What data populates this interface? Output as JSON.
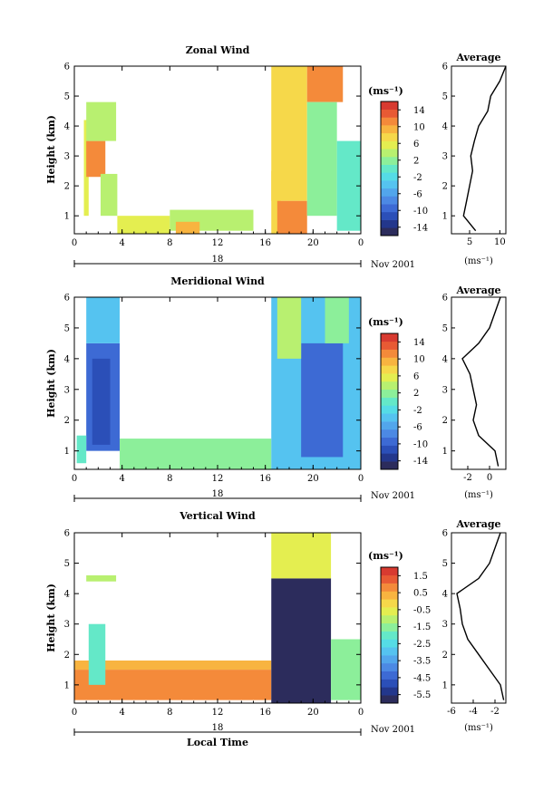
{
  "figure": {
    "x_axis_label": "Local Time",
    "date_label": "Nov 2001",
    "day_label": "18"
  },
  "chart_data": [
    {
      "type": "heatmap",
      "title": "Zonal Wind",
      "ylabel": "Height (km)",
      "x_ticks": [
        "0",
        "4",
        "8",
        "12",
        "16",
        "20",
        "0"
      ],
      "y_ticks": [
        "1",
        "2",
        "3",
        "4",
        "5",
        "6"
      ],
      "xlim_hours": [
        0,
        24
      ],
      "ylim": [
        0.4,
        6
      ],
      "colorbar": {
        "unit": "(ms⁻¹)",
        "ticks": [
          "14",
          "10",
          "6",
          "2",
          "-2",
          "-6",
          "-10",
          "-14"
        ],
        "min": -16,
        "max": 16,
        "colors": [
          "#2c2c5c",
          "#23378c",
          "#2b4fb8",
          "#3d6ad4",
          "#4c89e4",
          "#52a6ec",
          "#55c3f0",
          "#55dce6",
          "#64e8c8",
          "#8cef9a",
          "#b8f070",
          "#e4ee50",
          "#f6d84a",
          "#f8b440",
          "#f48a3a",
          "#e85a34",
          "#d83a30"
        ]
      },
      "regions": [
        {
          "t": [
            0.8,
            1.2
          ],
          "h": [
            1.0,
            4.2
          ],
          "value": 5
        },
        {
          "t": [
            1.0,
            2.6
          ],
          "h": [
            2.3,
            3.5
          ],
          "value": 12
        },
        {
          "t": [
            1.0,
            3.5
          ],
          "h": [
            3.5,
            4.8
          ],
          "value": 4
        },
        {
          "t": [
            2.2,
            3.6
          ],
          "h": [
            1.0,
            2.4
          ],
          "value": 4
        },
        {
          "t": [
            3.6,
            8.0
          ],
          "h": [
            0.4,
            1.0
          ],
          "value": 6
        },
        {
          "t": [
            8.0,
            15.0
          ],
          "h": [
            0.5,
            1.2
          ],
          "value": 3
        },
        {
          "t": [
            8.5,
            10.5
          ],
          "h": [
            0.4,
            0.8
          ],
          "value": 10
        },
        {
          "t": [
            16.5,
            17.3
          ],
          "h": [
            0.4,
            2.5
          ],
          "value": 8
        },
        {
          "t": [
            17.0,
            19.5
          ],
          "h": [
            0.4,
            1.5
          ],
          "value": 12
        },
        {
          "t": [
            16.5,
            19.5
          ],
          "h": [
            1.5,
            6.0
          ],
          "value": 7
        },
        {
          "t": [
            19.5,
            22.5
          ],
          "h": [
            4.8,
            6.0
          ],
          "value": 12
        },
        {
          "t": [
            19.5,
            22.0
          ],
          "h": [
            1.0,
            4.8
          ],
          "value": 2
        },
        {
          "t": [
            22.0,
            24.0
          ],
          "h": [
            0.5,
            3.5
          ],
          "value": 0
        }
      ],
      "profile": {
        "title": "Average",
        "xlabel": "(ms⁻¹)",
        "x_ticks": [
          "5",
          "10"
        ],
        "xlim": [
          2,
          11
        ],
        "heights": [
          0.5,
          1.0,
          1.5,
          2.0,
          2.5,
          3.0,
          3.5,
          4.0,
          4.5,
          5.0,
          5.5,
          6.0
        ],
        "values": [
          6.0,
          4.0,
          4.5,
          5.0,
          5.5,
          5.2,
          5.8,
          6.5,
          8.0,
          8.5,
          10.0,
          11.0
        ]
      }
    },
    {
      "type": "heatmap",
      "title": "Meridional Wind",
      "ylabel": "Height (km)",
      "x_ticks": [
        "0",
        "4",
        "8",
        "12",
        "16",
        "20",
        "0"
      ],
      "y_ticks": [
        "1",
        "2",
        "3",
        "4",
        "5",
        "6"
      ],
      "xlim_hours": [
        0,
        24
      ],
      "ylim": [
        0.4,
        6
      ],
      "colorbar": {
        "unit": "(ms⁻¹)",
        "ticks": [
          "14",
          "10",
          "6",
          "2",
          "-2",
          "-6",
          "-10",
          "-14"
        ],
        "min": -16,
        "max": 16,
        "colors": [
          "#2c2c5c",
          "#23378c",
          "#2b4fb8",
          "#3d6ad4",
          "#4c89e4",
          "#52a6ec",
          "#55c3f0",
          "#55dce6",
          "#64e8c8",
          "#8cef9a",
          "#b8f070",
          "#e4ee50",
          "#f6d84a",
          "#f8b440",
          "#f48a3a",
          "#e85a34",
          "#d83a30"
        ]
      },
      "regions": [
        {
          "t": [
            1.0,
            3.8
          ],
          "h": [
            1.0,
            4.5
          ],
          "value": -9
        },
        {
          "t": [
            1.5,
            3.0
          ],
          "h": [
            1.2,
            4.0
          ],
          "value": -12
        },
        {
          "t": [
            1.0,
            3.8
          ],
          "h": [
            4.5,
            6.0
          ],
          "value": -4
        },
        {
          "t": [
            0.2,
            1.0
          ],
          "h": [
            0.6,
            1.5
          ],
          "value": 0
        },
        {
          "t": [
            3.8,
            16.5
          ],
          "h": [
            0.4,
            1.4
          ],
          "value": 1
        },
        {
          "t": [
            16.5,
            24.0
          ],
          "h": [
            0.4,
            6.0
          ],
          "value": -4
        },
        {
          "t": [
            19.0,
            22.5
          ],
          "h": [
            0.8,
            4.5
          ],
          "value": -9
        },
        {
          "t": [
            17.0,
            19.0
          ],
          "h": [
            4.0,
            6.0
          ],
          "value": 3
        },
        {
          "t": [
            21.0,
            23.0
          ],
          "h": [
            4.5,
            6.0
          ],
          "value": 2
        }
      ],
      "profile": {
        "title": "Average",
        "xlabel": "(ms⁻¹)",
        "x_ticks": [
          "-2",
          "0"
        ],
        "xlim": [
          -3.5,
          1.5
        ],
        "heights": [
          0.5,
          1.0,
          1.5,
          2.0,
          2.5,
          3.0,
          3.5,
          4.0,
          4.5,
          5.0,
          5.5,
          6.0
        ],
        "values": [
          0.8,
          0.5,
          -1.0,
          -1.5,
          -1.2,
          -1.5,
          -1.8,
          -2.5,
          -1.0,
          0.0,
          0.5,
          1.0
        ]
      }
    },
    {
      "type": "heatmap",
      "title": "Vertical Wind",
      "ylabel": "Height (km)",
      "x_ticks": [
        "0",
        "4",
        "8",
        "12",
        "16",
        "20",
        "0"
      ],
      "y_ticks": [
        "1",
        "2",
        "3",
        "4",
        "5",
        "6"
      ],
      "xlim_hours": [
        0,
        24
      ],
      "ylim": [
        0.4,
        6
      ],
      "colorbar": {
        "unit": "(ms⁻¹)",
        "ticks": [
          "1.5",
          "0.5",
          "-0.5",
          "-1.5",
          "-2.5",
          "-3.5",
          "-4.5",
          "-5.5"
        ],
        "min": -6,
        "max": 2,
        "colors": [
          "#2c2c5c",
          "#23378c",
          "#2b4fb8",
          "#3d6ad4",
          "#4c89e4",
          "#52a6ec",
          "#55c3f0",
          "#55dce6",
          "#64e8c8",
          "#8cef9a",
          "#b8f070",
          "#e4ee50",
          "#f6d84a",
          "#f8b440",
          "#f48a3a",
          "#e85a34",
          "#d83a30"
        ]
      },
      "regions": [
        {
          "t": [
            0.0,
            16.5
          ],
          "h": [
            0.5,
            1.5
          ],
          "value": 0.8
        },
        {
          "t": [
            0.0,
            16.5
          ],
          "h": [
            1.5,
            1.8
          ],
          "value": 0.5
        },
        {
          "t": [
            1.2,
            2.6
          ],
          "h": [
            1.0,
            3.0
          ],
          "value": -2.0
        },
        {
          "t": [
            1.0,
            3.5
          ],
          "h": [
            4.4,
            4.6
          ],
          "value": -1.0
        },
        {
          "t": [
            16.5,
            21.5
          ],
          "h": [
            0.4,
            4.5
          ],
          "value": -5.8
        },
        {
          "t": [
            16.5,
            21.5
          ],
          "h": [
            4.5,
            6.0
          ],
          "value": -0.5
        },
        {
          "t": [
            21.5,
            24.0
          ],
          "h": [
            0.5,
            2.5
          ],
          "value": -1.5
        }
      ],
      "profile": {
        "title": "Average",
        "xlabel": "(ms⁻¹)",
        "x_ticks": [
          "-6",
          "-4",
          "-2"
        ],
        "xlim": [
          -6,
          -1
        ],
        "heights": [
          0.5,
          1.0,
          1.5,
          2.0,
          2.5,
          3.0,
          3.5,
          4.0,
          4.5,
          5.0,
          5.5,
          6.0
        ],
        "values": [
          -1.2,
          -1.5,
          -2.5,
          -3.5,
          -4.5,
          -5.0,
          -5.2,
          -5.5,
          -3.5,
          -2.5,
          -2.0,
          -1.5
        ]
      }
    }
  ]
}
